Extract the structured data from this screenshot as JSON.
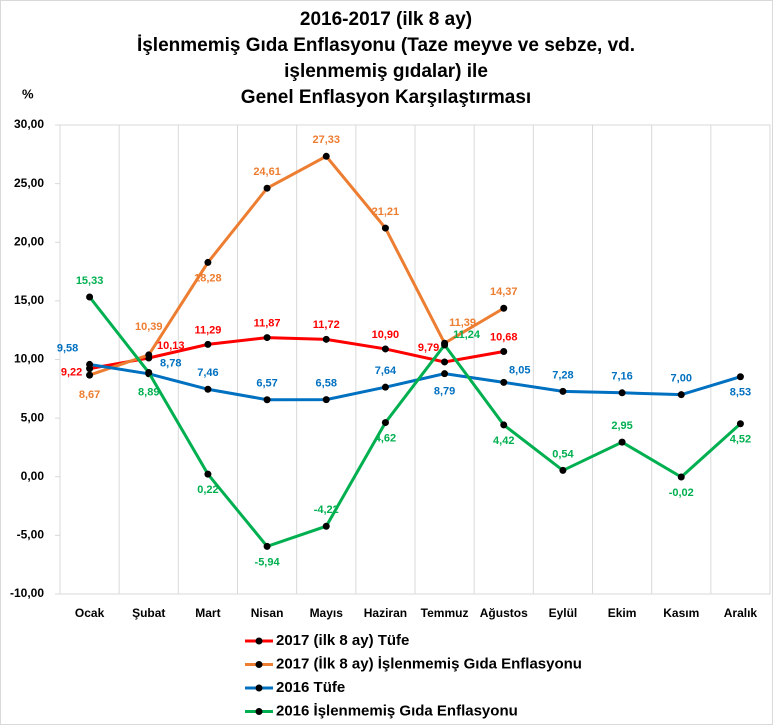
{
  "chart_data": {
    "type": "line",
    "title": [
      "2016-2017 (ilk 8 ay)",
      "İşlenmemiş Gıda Enflasyonu (Taze meyve ve sebze, vd.",
      "işlenmemiş gıdalar) ile",
      "Genel Enflasyon Karşılaştırması"
    ],
    "ylabel": "%",
    "categories": [
      "Ocak",
      "Şubat",
      "Mart",
      "Nisan",
      "Mayıs",
      "Haziran",
      "Temmuz",
      "Ağustos",
      "Eylül",
      "Ekim",
      "Kasım",
      "Aralık"
    ],
    "ylim": [
      -10,
      30
    ],
    "yticks": [
      {
        "value": -10,
        "label": "-10,00"
      },
      {
        "value": -5,
        "label": "-5,00"
      },
      {
        "value": 0,
        "label": "0,00"
      },
      {
        "value": 5,
        "label": "5,00"
      },
      {
        "value": 10,
        "label": "10,00"
      },
      {
        "value": 15,
        "label": "15,00"
      },
      {
        "value": 20,
        "label": "20,00"
      },
      {
        "value": 25,
        "label": "25,00"
      },
      {
        "value": 30,
        "label": "30,00"
      }
    ],
    "grid": "x",
    "series": [
      {
        "name": "2017 (ilk 8 ay) Tüfe",
        "color": "#ff0000",
        "values": [
          9.22,
          10.13,
          11.29,
          11.87,
          11.72,
          10.9,
          9.79,
          10.68,
          null,
          null,
          null,
          null
        ],
        "value_labels": [
          "9,22",
          "10,13",
          "11,29",
          "11,87",
          "11,72",
          "10,90",
          "9,79",
          "10,68",
          null,
          null,
          null,
          null
        ]
      },
      {
        "name": "2017 (İlk 8 ay) İşlenmemiş Gıda Enflasyonu",
        "color": "#ed7d31",
        "values": [
          8.67,
          10.39,
          18.28,
          24.61,
          27.33,
          21.21,
          11.39,
          14.37,
          null,
          null,
          null,
          null
        ],
        "value_labels": [
          "8,67",
          "10,39",
          "18,28",
          "24,61",
          "27,33",
          "21,21",
          "11,39",
          "14,37",
          null,
          null,
          null,
          null
        ]
      },
      {
        "name": "2016 Tüfe",
        "color": "#0070c0",
        "values": [
          9.58,
          8.78,
          7.46,
          6.57,
          6.58,
          7.64,
          8.79,
          8.05,
          7.28,
          7.16,
          7.0,
          8.53
        ],
        "value_labels": [
          "9,58",
          "8,78",
          "7,46",
          "6,57",
          "6,58",
          "7,64",
          "8,79",
          "8,05",
          "7,28",
          "7,16",
          "7,00",
          "8,53"
        ]
      },
      {
        "name": "2016 İşlenmemiş Gıda Enflasyonu",
        "color": "#00b050",
        "values": [
          15.33,
          8.89,
          0.22,
          -5.94,
          -4.22,
          4.62,
          11.24,
          4.42,
          0.54,
          2.95,
          -0.02,
          4.52
        ],
        "value_labels": [
          "15,33",
          "8,89",
          "0,22",
          "-5,94",
          "-4,22",
          "4,62",
          "11,24",
          "4,42",
          "0,54",
          "2,95",
          "-0,02",
          "4,52"
        ]
      }
    ]
  }
}
